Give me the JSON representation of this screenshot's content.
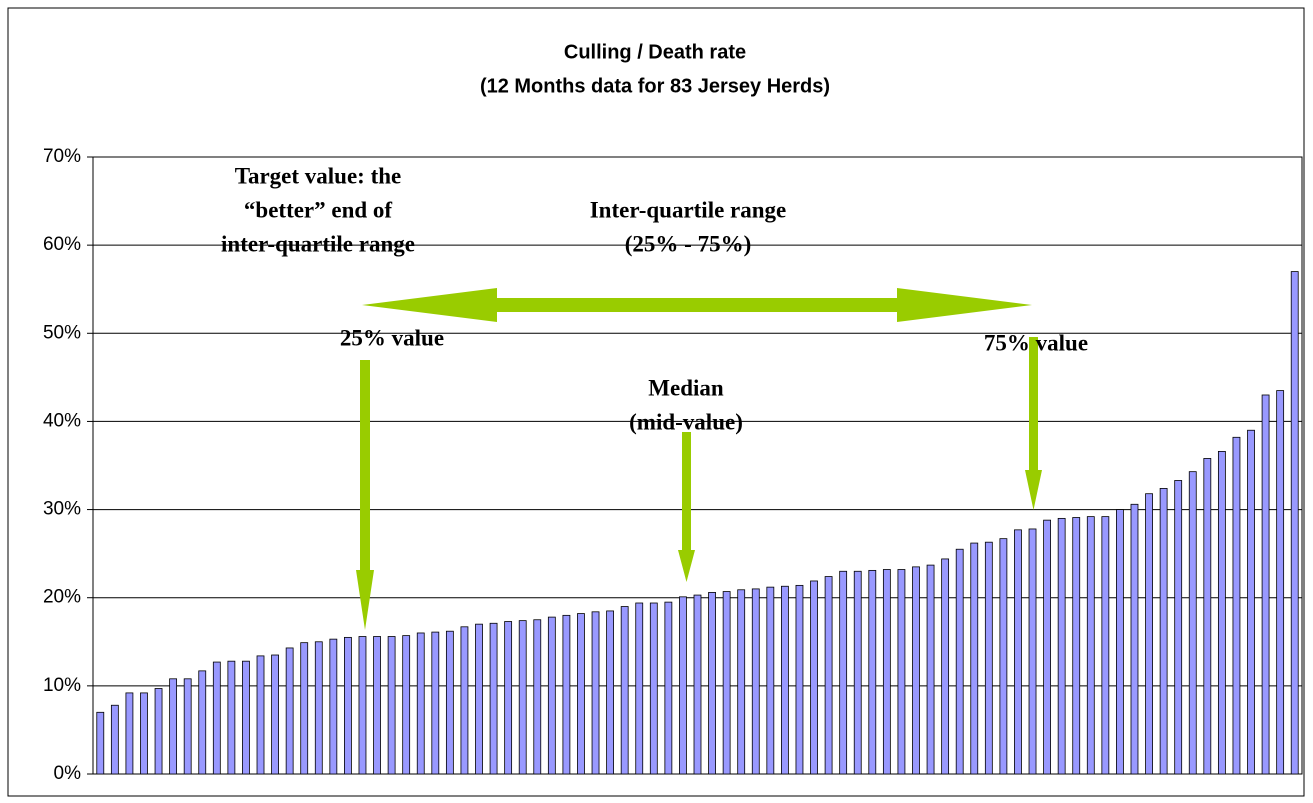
{
  "chart_data": {
    "type": "bar",
    "title": "Culling / Death rate",
    "subtitle": "(12 Months data for 83 Jersey Herds)",
    "categories": [
      null,
      null,
      null,
      null,
      null,
      null,
      null,
      null,
      null,
      null,
      null,
      null,
      null,
      null,
      null,
      null,
      null,
      null,
      null,
      null,
      null,
      null,
      null,
      null,
      null,
      null,
      null,
      null,
      null,
      null,
      null,
      null,
      null,
      null,
      null,
      null,
      null,
      null,
      null,
      null,
      null,
      null,
      null,
      null,
      null,
      null,
      null,
      null,
      null,
      null,
      null,
      null,
      null,
      null,
      null,
      null,
      null,
      null,
      null,
      null,
      null,
      null,
      null,
      null,
      null,
      null,
      null,
      null,
      null,
      null,
      null,
      null,
      null,
      null,
      null,
      null,
      null,
      null,
      null,
      null,
      null,
      null,
      null
    ],
    "values": [
      7.0,
      7.8,
      9.2,
      9.2,
      9.7,
      10.8,
      10.8,
      11.7,
      12.7,
      12.8,
      12.8,
      13.4,
      13.5,
      14.3,
      14.9,
      15.0,
      15.3,
      15.5,
      15.6,
      15.6,
      15.6,
      15.7,
      16.0,
      16.1,
      16.2,
      16.7,
      17.0,
      17.1,
      17.3,
      17.4,
      17.5,
      17.8,
      18.0,
      18.2,
      18.4,
      18.5,
      19.0,
      19.4,
      19.4,
      19.5,
      20.1,
      20.3,
      20.6,
      20.7,
      20.9,
      21.0,
      21.2,
      21.3,
      21.4,
      21.9,
      22.4,
      23.0,
      23.0,
      23.1,
      23.2,
      23.2,
      23.5,
      23.7,
      24.4,
      25.5,
      26.2,
      26.3,
      26.7,
      27.7,
      27.8,
      28.8,
      29.0,
      29.1,
      29.2,
      29.2,
      30.0,
      30.6,
      31.8,
      32.4,
      33.3,
      34.3,
      35.8,
      36.6,
      38.2,
      39.0,
      43.0,
      43.5,
      57.0
    ],
    "color": "#9999ff",
    "ylim": [
      0,
      70
    ],
    "yticks": [
      {
        "value": 0,
        "label": "0%"
      },
      {
        "value": 10,
        "label": "10%"
      },
      {
        "value": 20,
        "label": "20%"
      },
      {
        "value": 30,
        "label": "30%"
      },
      {
        "value": 40,
        "label": "40%"
      },
      {
        "value": 50,
        "label": "50%"
      },
      {
        "value": 60,
        "label": "60%"
      },
      {
        "value": 70,
        "label": "70%"
      }
    ],
    "grid": true,
    "annotations": {
      "target": [
        "Target value: the",
        "“better” end of",
        "inter-quartile range"
      ],
      "iqr": [
        "Inter-quartile range",
        "(25% - 75%)"
      ],
      "q25": "25% value",
      "median": [
        "Median",
        "(mid-value)"
      ],
      "q75": "75% value"
    }
  }
}
